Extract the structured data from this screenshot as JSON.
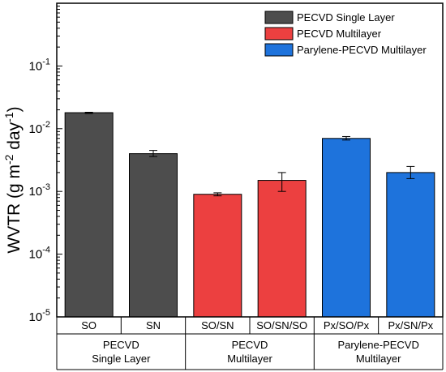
{
  "chart_data": {
    "type": "bar",
    "y_scale": "log",
    "ylim": [
      1e-05,
      1
    ],
    "ylabel": {
      "base": "WVTR (g m",
      "exp1": "-2",
      "mid": " day",
      "exp2": "-1",
      "end": ")"
    },
    "y_ticks": [
      {
        "value": 0.1,
        "base": "10",
        "exp": "-1"
      },
      {
        "value": 0.01,
        "base": "10",
        "exp": "-2"
      },
      {
        "value": 0.001,
        "base": "10",
        "exp": "-3"
      },
      {
        "value": 0.0001,
        "base": "10",
        "exp": "-4"
      },
      {
        "value": 1e-05,
        "base": "10",
        "exp": "-5"
      }
    ],
    "categories": [
      "SO",
      "SN",
      "SO/SN",
      "SO/SN/SO",
      "Px/SO/Px",
      "Px/SN/Px"
    ],
    "series": [
      {
        "name": "PECVD Single Layer",
        "color": "#4d4d4d",
        "category_indices": [
          0,
          1
        ]
      },
      {
        "name": "PECVD Multilayer",
        "color": "#ec4040",
        "category_indices": [
          2,
          3
        ]
      },
      {
        "name": "Parylene-PECVD Multilayer",
        "color": "#1e73dc",
        "category_indices": [
          4,
          5
        ]
      }
    ],
    "values": [
      0.018,
      0.004,
      0.0009,
      0.0015,
      0.007,
      0.002
    ],
    "errors": [
      [
        0.0175,
        0.0183
      ],
      [
        0.0036,
        0.0045
      ],
      [
        0.00085,
        0.00095
      ],
      [
        0.001,
        0.002
      ],
      [
        0.0066,
        0.0075
      ],
      [
        0.0016,
        0.0025
      ]
    ],
    "groups": [
      {
        "line1": "PECVD",
        "line2": "Single Layer",
        "span": [
          0,
          1
        ]
      },
      {
        "line1": "PECVD",
        "line2": "Multilayer",
        "span": [
          2,
          3
        ]
      },
      {
        "line1": "Parylene-PECVD",
        "line2": "Multilayer",
        "span": [
          4,
          5
        ]
      }
    ],
    "legend_position": "top-right"
  }
}
